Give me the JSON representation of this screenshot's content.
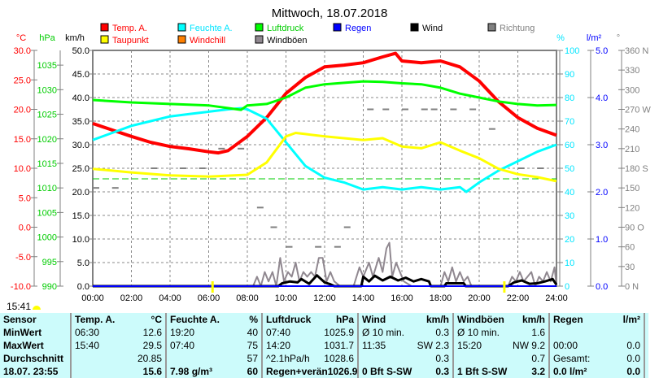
{
  "chart_data": {
    "type": "line",
    "title": "Mittwoch, 18.07.2018",
    "x_ticks": [
      "00:00",
      "02:00",
      "04:00",
      "06:00",
      "08:00",
      "10:00",
      "12:00",
      "14:00",
      "16:00",
      "18:00",
      "20:00",
      "22:00",
      "24:00"
    ],
    "xlim": [
      0,
      24
    ],
    "axes": {
      "temp": {
        "unit": "°C",
        "range": [
          -10,
          30
        ],
        "ticks": [
          "30.0",
          "25.0",
          "20.0",
          "15.0",
          "10.0",
          "5.0",
          "0.0",
          "-5.0",
          "-10.0"
        ],
        "color": "#ff0000"
      },
      "pressure": {
        "unit": "hPa",
        "range": [
          990,
          1038
        ],
        "ticks": [
          "1035",
          "1030",
          "1025",
          "1020",
          "1015",
          "1010",
          "1005",
          "1000",
          "995",
          "990"
        ],
        "color": "#00cc00"
      },
      "wind": {
        "unit": "km/h",
        "range": [
          0,
          50
        ],
        "ticks": [
          "50.0",
          "45.0",
          "40.0",
          "35.0",
          "30.0",
          "25.0",
          "20.0",
          "15.0",
          "10.0",
          "5.0",
          "0.0"
        ],
        "color": "#000000"
      },
      "humidity": {
        "unit": "%",
        "range": [
          0,
          100
        ],
        "ticks": [
          "100",
          "90",
          "80",
          "70",
          "60",
          "50",
          "40",
          "30",
          "20",
          "10",
          "0"
        ],
        "color": "#00e5ff"
      },
      "rain": {
        "unit": "l/m²",
        "range": [
          0,
          5
        ],
        "ticks": [
          "5.0",
          "4.0",
          "3.0",
          "2.0",
          "1.0",
          "0.0"
        ],
        "color": "#0000ff"
      },
      "direction": {
        "unit": "°",
        "range": [
          0,
          360
        ],
        "ticks": [
          "360 N",
          "330",
          "300",
          "270 W",
          "240",
          "210",
          "180 S",
          "150",
          "120",
          "90  O",
          "60",
          "30",
          "0    N"
        ],
        "color": "#808080"
      }
    },
    "legend": [
      {
        "label": "Temp. A.",
        "color": "#ff0000",
        "text_color": "#ff0000"
      },
      {
        "label": "Feuchte A.",
        "color": "#00ffff",
        "text_color": "#00e5ff"
      },
      {
        "label": "Luftdruck",
        "color": "#00ff00",
        "text_color": "#00cc00"
      },
      {
        "label": "Regen",
        "color": "#0000ff",
        "text_color": "#0000ff"
      },
      {
        "label": "Wind",
        "color": "#000000",
        "text_color": "#000000"
      },
      {
        "label": "Richtung",
        "color": "#808080",
        "text_color": "#808080"
      },
      {
        "label": "Taupunkt",
        "color": "#ffff00",
        "text_color": "#ff0000"
      },
      {
        "label": "Windchill",
        "color": "#ff8000",
        "text_color": "#ff0000"
      },
      {
        "label": "Windböen",
        "color": "#908890",
        "text_color": "#000000"
      }
    ],
    "series": [
      {
        "name": "Temp. A.",
        "axis": "temp",
        "color": "#ff0000",
        "x": [
          0,
          1,
          2,
          3,
          4,
          5,
          6,
          6.5,
          7,
          8,
          9,
          10,
          11,
          12,
          13,
          14,
          15,
          15.67,
          16,
          17,
          18,
          19,
          20,
          21,
          22,
          23,
          24
        ],
        "values": [
          17.6,
          16.5,
          15.4,
          14.4,
          13.7,
          13.3,
          12.8,
          12.6,
          13.0,
          15.4,
          18.6,
          22.7,
          25.4,
          27.2,
          27.5,
          27.9,
          28.9,
          29.5,
          28.2,
          27.9,
          28.2,
          27.2,
          24.8,
          21.3,
          18.6,
          16.8,
          15.6
        ]
      },
      {
        "name": "Feuchte A.",
        "axis": "humidity",
        "color": "#00ffff",
        "x": [
          0,
          1,
          2,
          3,
          4,
          5,
          6,
          7,
          7.67,
          8,
          9,
          10,
          11,
          12,
          13,
          14,
          15,
          16,
          17,
          18,
          19,
          19.33,
          20,
          21,
          22,
          23,
          24
        ],
        "values": [
          62,
          65,
          68,
          70,
          72,
          73,
          74,
          75,
          75.5,
          75,
          71,
          61,
          51,
          46,
          44,
          41,
          42,
          41,
          42,
          41,
          42,
          40,
          44,
          49,
          53,
          57,
          60
        ]
      },
      {
        "name": "Luftdruck",
        "axis": "pressure",
        "color": "#00ff00",
        "x": [
          0,
          2,
          4,
          6,
          7.67,
          8,
          9,
          10,
          11,
          12,
          13,
          14,
          15,
          16,
          17,
          18,
          19,
          20,
          21,
          22,
          23,
          24
        ],
        "values": [
          1027.9,
          1027.4,
          1027.1,
          1026.8,
          1025.9,
          1026.8,
          1027.1,
          1028.4,
          1030.4,
          1031.1,
          1031.4,
          1031.7,
          1031.6,
          1031.3,
          1031.1,
          1030.4,
          1029.2,
          1028.4,
          1027.6,
          1027.1,
          1026.8,
          1026.9
        ]
      },
      {
        "name": "Taupunkt",
        "axis": "temp",
        "color": "#ffff00",
        "x": [
          0,
          2,
          4,
          6,
          8,
          9,
          10,
          10.5,
          11,
          12,
          13,
          14,
          15,
          16,
          17,
          18,
          19,
          20,
          21,
          22,
          23,
          24
        ],
        "values": [
          9.9,
          9.3,
          8.8,
          8.6,
          8.9,
          11,
          15.4,
          16.0,
          15.8,
          15.4,
          15.1,
          14.8,
          15.1,
          13.7,
          13.4,
          14.4,
          13.0,
          11.7,
          9.9,
          9.0,
          8.5,
          7.8
        ]
      },
      {
        "name": "Windböen",
        "axis": "wind",
        "color": "#908890",
        "x": [
          0,
          8.3,
          8.5,
          8.7,
          8.9,
          9.1,
          9.3,
          9.5,
          9.7,
          9.9,
          10.1,
          10.3,
          10.5,
          10.7,
          10.9,
          11.1,
          11.3,
          11.5,
          11.7,
          11.9,
          12.1,
          12.3,
          12.5,
          12.8,
          13.5,
          13.8,
          14.0,
          14.3,
          14.5,
          14.8,
          15.0,
          15.2,
          15.35,
          15.5,
          15.7,
          15.9,
          16.1,
          16.5,
          18.0,
          18.2,
          18.4,
          18.6,
          18.8,
          19.0,
          19.2,
          19.4,
          19.6,
          20.0,
          21.5,
          21.7,
          21.9,
          22.1,
          22.3,
          22.5,
          22.7,
          22.9,
          23.1,
          23.3,
          23.5,
          23.7,
          23.9,
          24
        ],
        "values": [
          0,
          0,
          2,
          0,
          3,
          1,
          3,
          0,
          6,
          1,
          3,
          2,
          5,
          1,
          3,
          2,
          3,
          2,
          6,
          6,
          1,
          3,
          1,
          0,
          0,
          4,
          2,
          5,
          2,
          6,
          3,
          8,
          9.2,
          2,
          5,
          3,
          1,
          0,
          0,
          3,
          1,
          4,
          1,
          3,
          1,
          2,
          0,
          0,
          0,
          2,
          1,
          3,
          1,
          2,
          3,
          0,
          2,
          1,
          3,
          1,
          4,
          0
        ]
      },
      {
        "name": "Wind",
        "axis": "wind",
        "color": "#000000",
        "x": [
          0,
          9.6,
          9.8,
          10.2,
          10.6,
          10.8,
          11.2,
          11.6,
          12.0,
          12.3,
          12.5,
          13.9,
          14.0,
          14.3,
          14.6,
          15.0,
          15.4,
          15.8,
          16.2,
          16.6,
          17.0,
          17.4,
          17.5,
          18.2,
          18.3,
          19.2,
          19.3,
          21.5,
          21.8,
          22.2,
          22.6,
          23.0,
          23.4,
          23.8,
          24
        ],
        "values": [
          0,
          0,
          0.6,
          1.0,
          0.8,
          1.5,
          0.5,
          2.3,
          0.8,
          0.4,
          0,
          0,
          2.0,
          1.0,
          2.2,
          1.2,
          2.0,
          1.2,
          1.8,
          1.0,
          1.5,
          1.0,
          0,
          0,
          0.6,
          0.6,
          0,
          0,
          0.8,
          1.2,
          0.5,
          0.6,
          1.0,
          1.5,
          0.3
        ]
      },
      {
        "name": "Regen",
        "axis": "rain",
        "color": "#0000ff",
        "x": [
          0,
          24
        ],
        "values": [
          0,
          0
        ]
      }
    ],
    "direction_points": {
      "x": [
        0,
        1,
        3,
        4.5,
        5.5,
        6.5,
        7.5,
        11.5,
        12.5,
        13,
        14.2,
        15,
        16,
        17,
        17.5,
        18.5,
        19.5,
        20.5,
        22,
        23,
        8.5,
        9.2,
        10
      ],
      "values": [
        150,
        150,
        180,
        180,
        180,
        210,
        210,
        60,
        60,
        90,
        270,
        270,
        270,
        270,
        270,
        270,
        270,
        240,
        180,
        180,
        120,
        90,
        60
      ]
    },
    "reference_line": {
      "axis": "temp",
      "value": 8.2,
      "color": "#00cc00",
      "style": "dashed"
    }
  },
  "time": "15:41",
  "table": {
    "columns": [
      {
        "head": [
          "Sensor",
          ""
        ],
        "rows": [
          [
            "MinWert",
            ""
          ],
          [
            "MaxWert",
            ""
          ],
          [
            "Durchschnitt",
            ""
          ],
          [
            "18.07. 23:55",
            ""
          ]
        ],
        "bold_first": true
      },
      {
        "head": [
          "Temp. A.",
          "°C"
        ],
        "rows": [
          [
            "06:30",
            "12.6"
          ],
          [
            "15:40",
            "29.5"
          ],
          [
            "",
            "20.85"
          ],
          [
            "",
            "15.6"
          ]
        ]
      },
      {
        "head": [
          "Feuchte A.",
          "%"
        ],
        "rows": [
          [
            "19:20",
            "40"
          ],
          [
            "07:40",
            "75"
          ],
          [
            "",
            "57"
          ],
          [
            "7.98 g/m³",
            "60"
          ]
        ]
      },
      {
        "head": [
          "Luftdruck",
          "hPa"
        ],
        "rows": [
          [
            "07:40",
            "1025.9"
          ],
          [
            "14:20",
            "1031.7"
          ],
          [
            "^2.1hPa/h",
            "1028.6"
          ],
          [
            "Regen+verän",
            "1026.9"
          ]
        ]
      },
      {
        "head": [
          "Wind",
          "km/h"
        ],
        "rows": [
          [
            "Ø 10 min.",
            "0.3"
          ],
          [
            "11:35",
            "SW 2.3"
          ],
          [
            "",
            "0.3"
          ],
          [
            "0 Bft S-SW",
            "0.3"
          ]
        ]
      },
      {
        "head": [
          "Windböen",
          "km/h"
        ],
        "rows": [
          [
            "Ø 10 min.",
            "1.6"
          ],
          [
            "15:20",
            "NW 9.2"
          ],
          [
            "",
            "0.7"
          ],
          [
            "1 Bft S-SW",
            "3.2"
          ]
        ]
      },
      {
        "head": [
          "Regen",
          "l/m²"
        ],
        "rows": [
          [
            "",
            ""
          ],
          [
            "00:00",
            "0.0"
          ],
          [
            "Gesamt:",
            "0.0"
          ],
          [
            "0.0 l/m²",
            "0.0"
          ]
        ]
      }
    ]
  }
}
